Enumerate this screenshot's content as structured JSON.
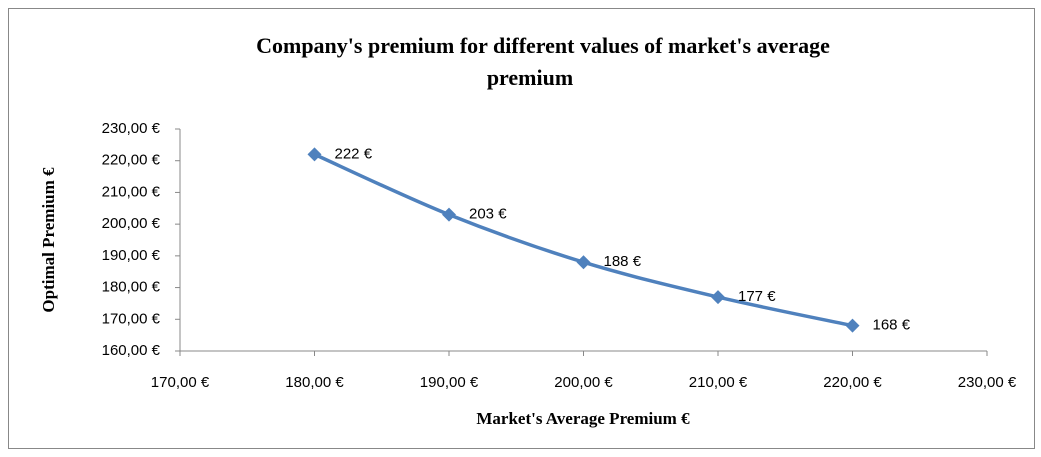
{
  "chart_data": {
    "type": "line",
    "title": "Company's premium for different values of market's average premium",
    "x_label": "Market's Average Premium €",
    "y_label": "Optimal Premium €",
    "x": [
      180,
      190,
      200,
      210,
      220
    ],
    "series": [
      {
        "name": "Optimal Premium",
        "color": "#4f81bd",
        "values": [
          222,
          203,
          188,
          177,
          168
        ],
        "value_labels": [
          "222 €",
          "203 €",
          "188 €",
          "177 €",
          "168 €"
        ]
      }
    ],
    "xlim": [
      170,
      230
    ],
    "xticks": [
      {
        "value": 170,
        "label": "170,00 €"
      },
      {
        "value": 180,
        "label": "180,00 €"
      },
      {
        "value": 190,
        "label": "190,00 €"
      },
      {
        "value": 200,
        "label": "200,00 €"
      },
      {
        "value": 210,
        "label": "210,00 €"
      },
      {
        "value": 220,
        "label": "220,00 €"
      },
      {
        "value": 230,
        "label": "230,00 €"
      }
    ],
    "ylim": [
      160,
      230
    ],
    "yticks": [
      {
        "value": 160,
        "label": "160,00 €"
      },
      {
        "value": 170,
        "label": "170,00 €"
      },
      {
        "value": 180,
        "label": "180,00 €"
      },
      {
        "value": 190,
        "label": "190,00 €"
      },
      {
        "value": 200,
        "label": "200,00 €"
      },
      {
        "value": 210,
        "label": "210,00 €"
      },
      {
        "value": 220,
        "label": "220,00 €"
      },
      {
        "value": 230,
        "label": "230,00 €"
      }
    ],
    "grid": false
  }
}
